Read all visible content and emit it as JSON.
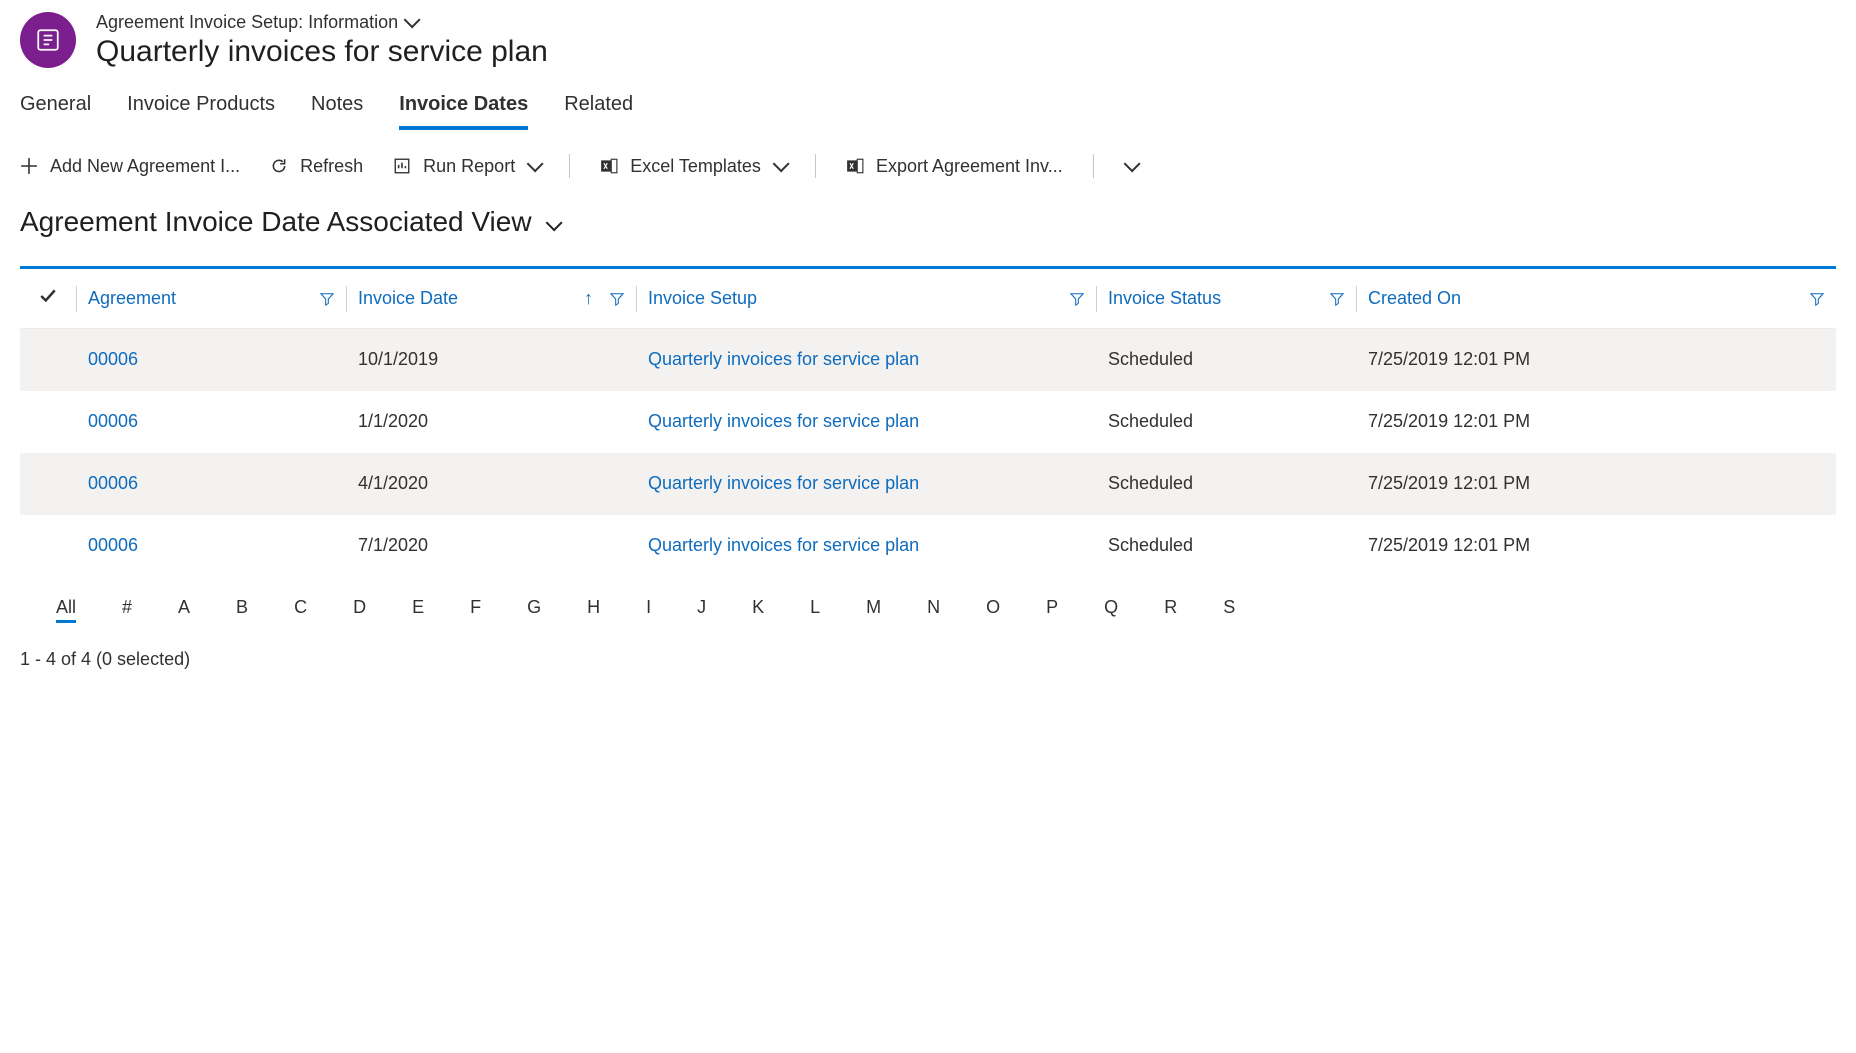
{
  "colors": {
    "accent": "#0078d4",
    "link": "#0f6cbd",
    "brand_icon_bg": "#7c1f8e",
    "stripe": "#f3f2f1",
    "text": "#323130",
    "divider": "#c8c6c4"
  },
  "header": {
    "breadcrumb": "Agreement Invoice Setup: Information",
    "title": "Quarterly invoices for service plan"
  },
  "tabs": [
    {
      "label": "General",
      "active": false
    },
    {
      "label": "Invoice Products",
      "active": false
    },
    {
      "label": "Notes",
      "active": false
    },
    {
      "label": "Invoice Dates",
      "active": true
    },
    {
      "label": "Related",
      "active": false
    }
  ],
  "commandbar": {
    "add_new": "Add New Agreement I...",
    "refresh": "Refresh",
    "run_report": "Run Report",
    "excel_templates": "Excel Templates",
    "export": "Export Agreement Inv..."
  },
  "view": {
    "title": "Agreement Invoice Date Associated View"
  },
  "grid": {
    "columns": [
      {
        "key": "agreement",
        "label": "Agreement",
        "sortable": false,
        "filter": true
      },
      {
        "key": "invoice_date",
        "label": "Invoice Date",
        "sortable": true,
        "sort_dir": "asc",
        "filter": true
      },
      {
        "key": "invoice_setup",
        "label": "Invoice Setup",
        "sortable": false,
        "filter": true
      },
      {
        "key": "invoice_status",
        "label": "Invoice Status",
        "sortable": false,
        "filter": true
      },
      {
        "key": "created_on",
        "label": "Created On",
        "sortable": false,
        "filter": true
      }
    ],
    "rows": [
      {
        "agreement": "00006",
        "invoice_date": "10/1/2019",
        "invoice_setup": "Quarterly invoices for service plan",
        "invoice_status": "Scheduled",
        "created_on": "7/25/2019 12:01 PM"
      },
      {
        "agreement": "00006",
        "invoice_date": "1/1/2020",
        "invoice_setup": "Quarterly invoices for service plan",
        "invoice_status": "Scheduled",
        "created_on": "7/25/2019 12:01 PM"
      },
      {
        "agreement": "00006",
        "invoice_date": "4/1/2020",
        "invoice_setup": "Quarterly invoices for service plan",
        "invoice_status": "Scheduled",
        "created_on": "7/25/2019 12:01 PM"
      },
      {
        "agreement": "00006",
        "invoice_date": "7/1/2020",
        "invoice_setup": "Quarterly invoices for service plan",
        "invoice_status": "Scheduled",
        "created_on": "7/25/2019 12:01 PM"
      }
    ]
  },
  "alpha_bar": [
    "All",
    "#",
    "A",
    "B",
    "C",
    "D",
    "E",
    "F",
    "G",
    "H",
    "I",
    "J",
    "K",
    "L",
    "M",
    "N",
    "O",
    "P",
    "Q",
    "R",
    "S"
  ],
  "alpha_active": "All",
  "footer": {
    "status": "1 - 4 of 4 (0 selected)"
  }
}
